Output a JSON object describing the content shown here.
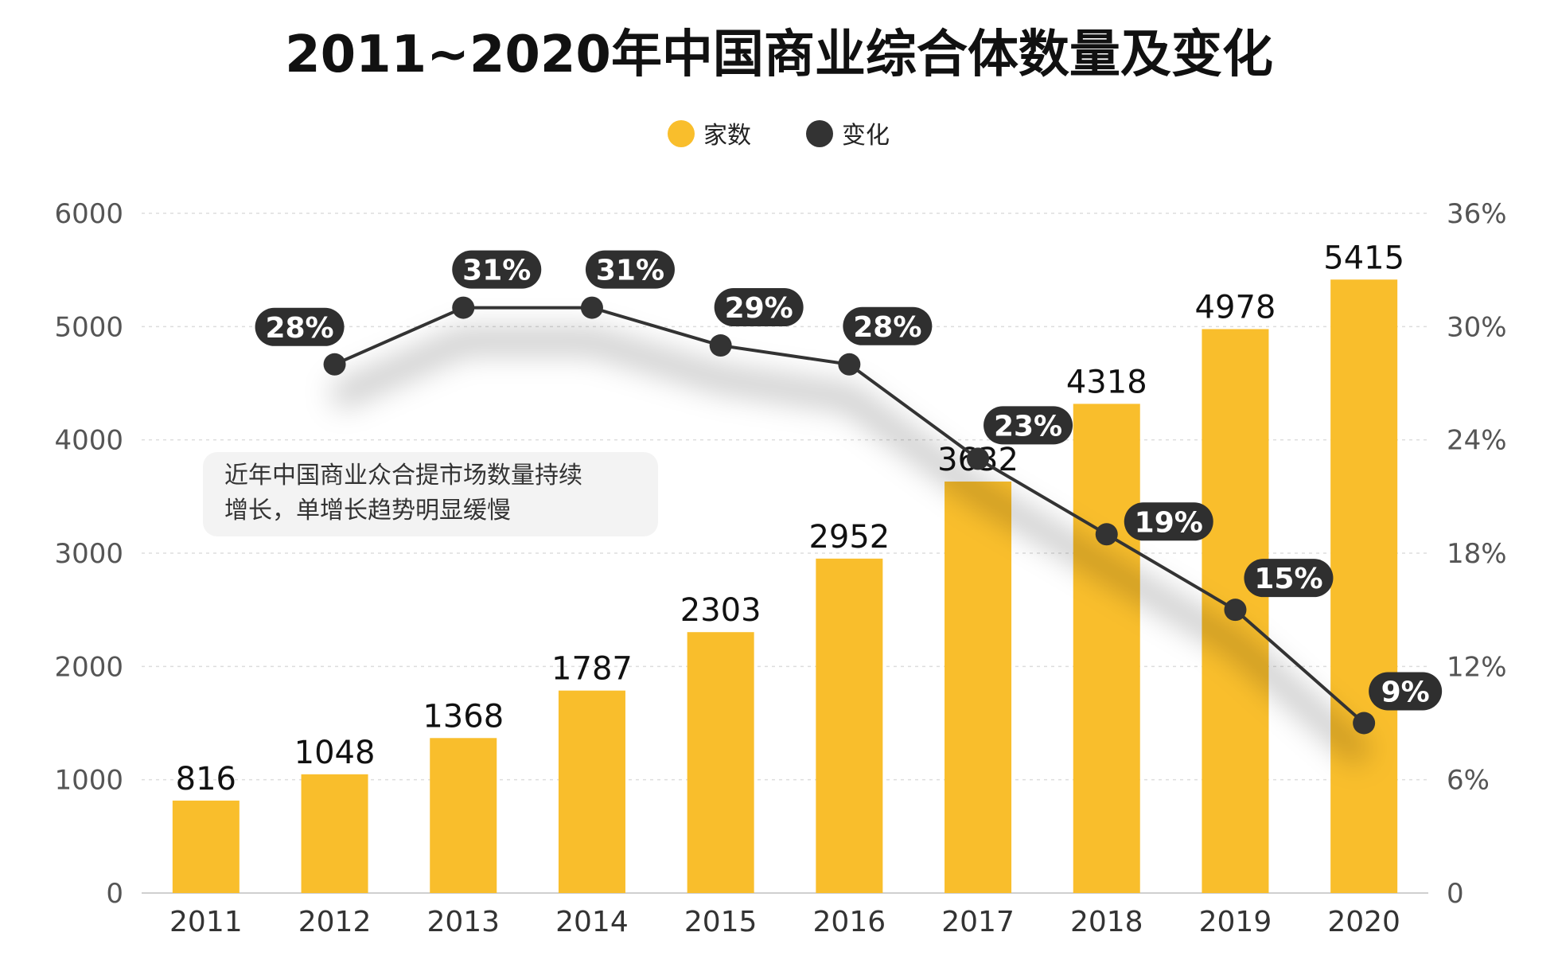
{
  "chart_data": {
    "type": "bar",
    "title": "2011~2020年中国商业综合体数量及变化",
    "categories": [
      "2011",
      "2012",
      "2013",
      "2014",
      "2015",
      "2016",
      "2017",
      "2018",
      "2019",
      "2020"
    ],
    "series": [
      {
        "name": "家数",
        "type": "bar",
        "axis": "left",
        "values": [
          816,
          1048,
          1368,
          1787,
          2303,
          2952,
          3632,
          4318,
          4978,
          5415
        ],
        "value_labels": [
          "816",
          "1048",
          "1368",
          "1787",
          "2303",
          "2952",
          "3632",
          "4318",
          "4978",
          "5415"
        ],
        "color": "#F9BE2C"
      },
      {
        "name": "变化",
        "type": "line",
        "axis": "right",
        "values": [
          null,
          28,
          31,
          31,
          29,
          28,
          23,
          19,
          15,
          9
        ],
        "value_labels": [
          null,
          "28%",
          "31%",
          "31%",
          "29%",
          "28%",
          "23%",
          "19%",
          "15%",
          "9%"
        ],
        "color": "#333333"
      }
    ],
    "y_left": {
      "ylim": [
        0,
        6000
      ],
      "ticks": [
        "0",
        "1000",
        "2000",
        "3000",
        "4000",
        "5000",
        "6000"
      ]
    },
    "y_right": {
      "ylim": [
        0,
        36
      ],
      "ticks": [
        "0",
        "6%",
        "12%",
        "18%",
        "24%",
        "30%",
        "36%"
      ]
    },
    "xlabel": "",
    "ylabel": "",
    "grid": true,
    "legend": {
      "position": "top-center",
      "items": [
        "家数",
        "变化"
      ]
    },
    "annotation": [
      "近年中国商业众合提市场数量持续",
      "增长，单增长趋势明显缓慢"
    ]
  }
}
